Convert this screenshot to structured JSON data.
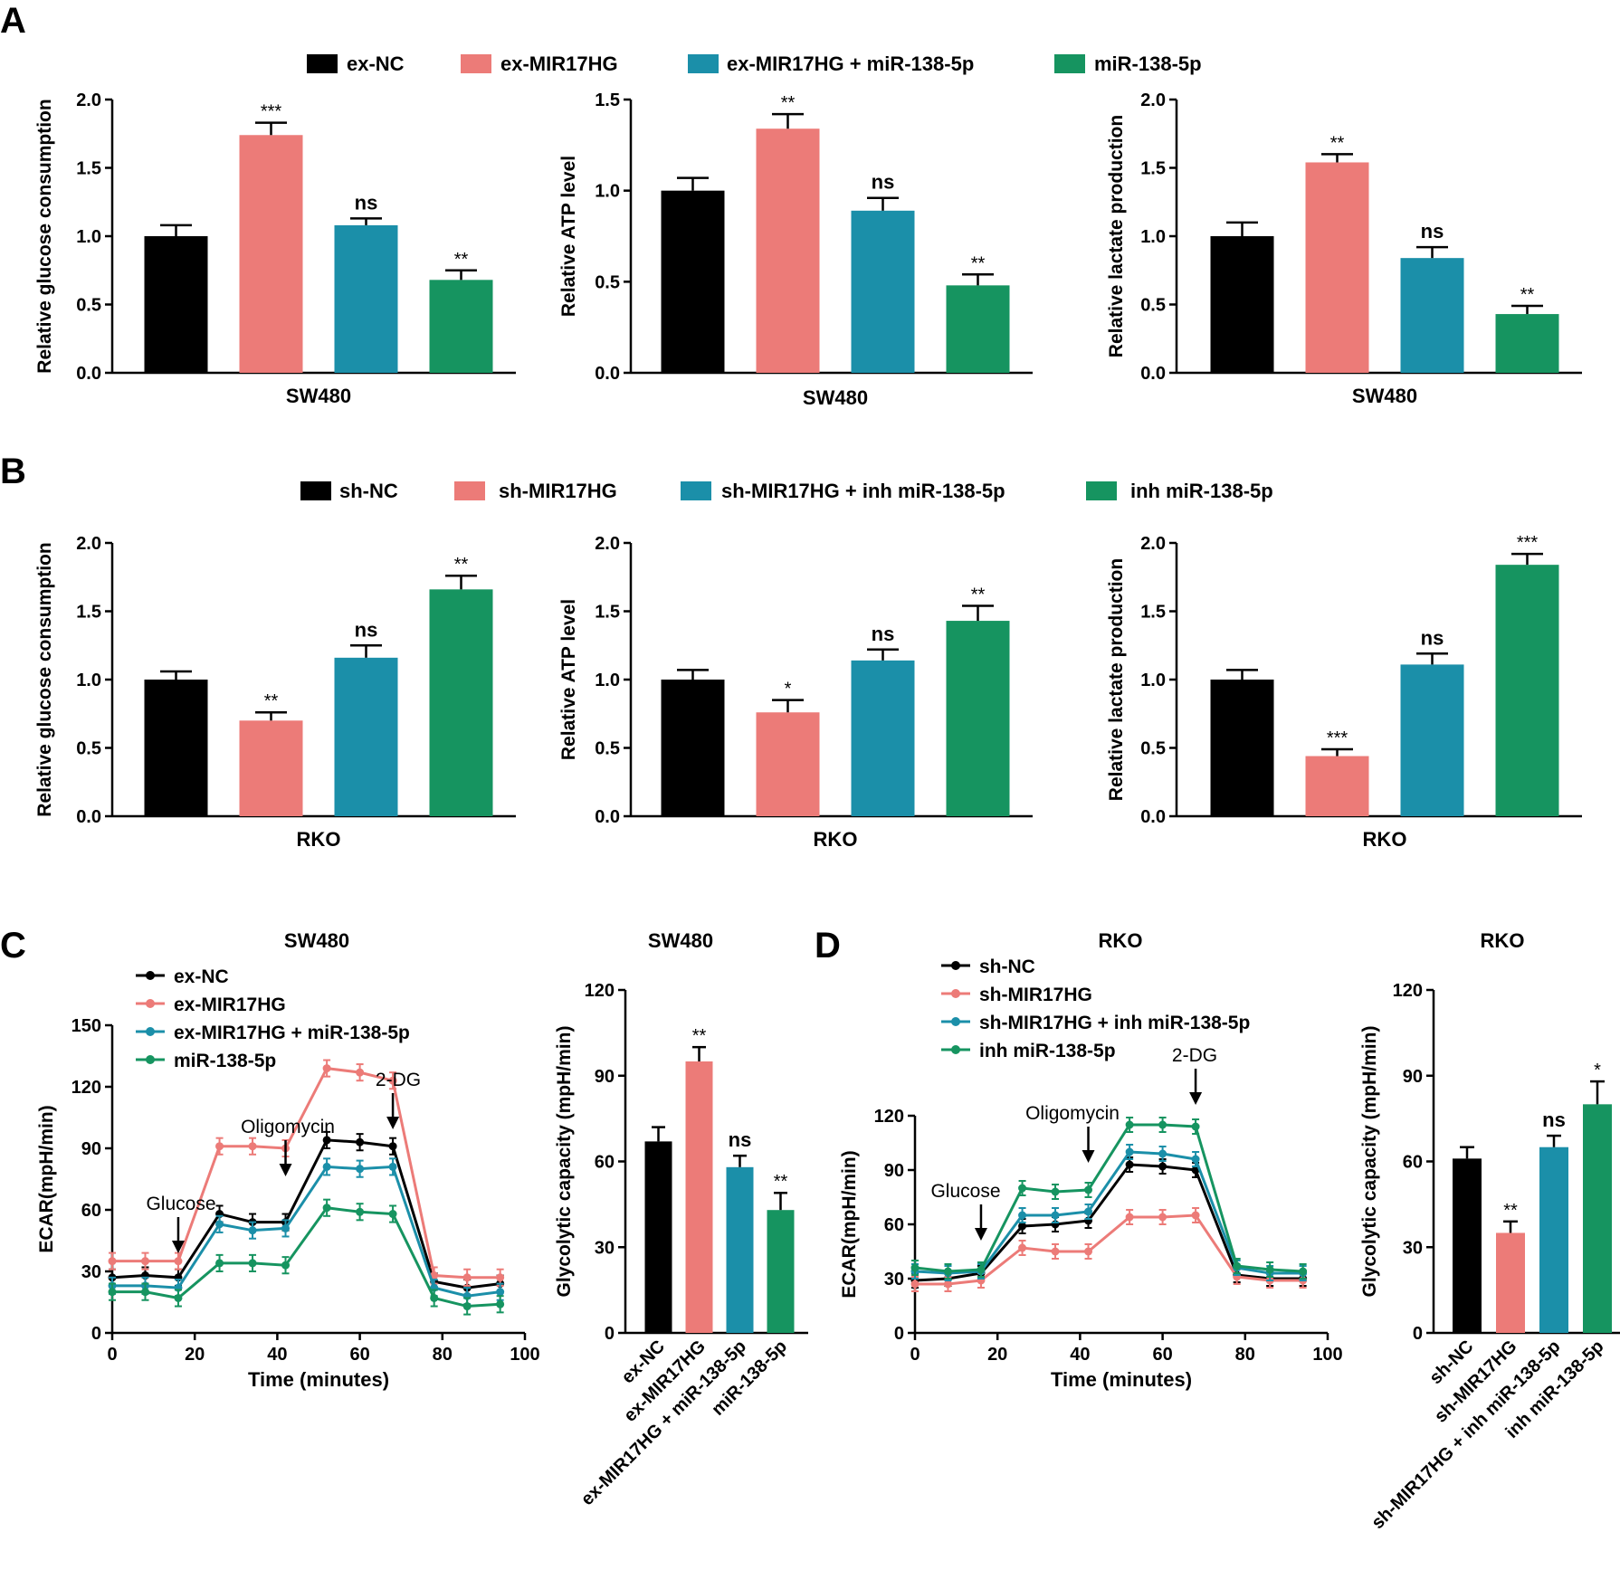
{
  "colors": {
    "black": "#000000",
    "salmon": "#ec7b78",
    "teal": "#1b8fa9",
    "green": "#169460"
  },
  "legends": {
    "A": [
      "ex-NC",
      "ex-MIR17HG",
      "ex-MIR17HG + miR-138-5p",
      "miR-138-5p"
    ],
    "B": [
      "sh-NC",
      "sh-MIR17HG",
      "sh-MIR17HG + inh miR-138-5p",
      "inh miR-138-5p"
    ]
  },
  "panel_letters": [
    "A",
    "B",
    "C",
    "D"
  ],
  "chart_data": [
    {
      "id": "A1",
      "type": "bar",
      "panel": "A",
      "ylabel": "Relative glucose consumption",
      "xlabel": "SW480",
      "ylim": [
        0,
        2.0
      ],
      "yticks": [
        0.0,
        0.5,
        1.0,
        1.5,
        2.0
      ],
      "ytick_labels": [
        "0.0",
        "0.5",
        "1.0",
        "1.5",
        "2.0"
      ],
      "categories": [
        "ex-NC",
        "ex-MIR17HG",
        "ex-MIR17HG + miR-138-5p",
        "miR-138-5p"
      ],
      "values": [
        1.0,
        1.74,
        1.08,
        0.68
      ],
      "errors": [
        0.08,
        0.09,
        0.05,
        0.07
      ],
      "significance": [
        "",
        "***",
        "ns",
        "**"
      ]
    },
    {
      "id": "A2",
      "type": "bar",
      "panel": "A",
      "ylabel": "Relative ATP level",
      "xlabel": "SW480",
      "ylim": [
        0,
        1.5
      ],
      "yticks": [
        0.0,
        0.5,
        1.0,
        1.5
      ],
      "ytick_labels": [
        "0.0",
        "0.5",
        "1.0",
        "1.5"
      ],
      "categories": [
        "ex-NC",
        "ex-MIR17HG",
        "ex-MIR17HG + miR-138-5p",
        "miR-138-5p"
      ],
      "values": [
        1.0,
        1.34,
        0.89,
        0.48
      ],
      "errors": [
        0.07,
        0.08,
        0.07,
        0.06
      ],
      "significance": [
        "",
        "**",
        "ns",
        "**"
      ]
    },
    {
      "id": "A3",
      "type": "bar",
      "panel": "A",
      "ylabel": "Relative lactate production",
      "xlabel": "SW480",
      "ylim": [
        0,
        2.0
      ],
      "yticks": [
        0.0,
        0.5,
        1.0,
        1.5,
        2.0
      ],
      "ytick_labels": [
        "0.0",
        "0.5",
        "1.0",
        "1.5",
        "2.0"
      ],
      "categories": [
        "ex-NC",
        "ex-MIR17HG",
        "ex-MIR17HG + miR-138-5p",
        "miR-138-5p"
      ],
      "values": [
        1.0,
        1.54,
        0.84,
        0.43
      ],
      "errors": [
        0.1,
        0.06,
        0.08,
        0.06
      ],
      "significance": [
        "",
        "**",
        "ns",
        "**"
      ]
    },
    {
      "id": "B1",
      "type": "bar",
      "panel": "B",
      "ylabel": "Relative glucose consumption",
      "xlabel": "RKO",
      "ylim": [
        0,
        2.0
      ],
      "yticks": [
        0.0,
        0.5,
        1.0,
        1.5,
        2.0
      ],
      "ytick_labels": [
        "0.0",
        "0.5",
        "1.0",
        "1.5",
        "2.0"
      ],
      "categories": [
        "sh-NC",
        "sh-MIR17HG",
        "sh-MIR17HG + inh miR-138-5p",
        "inh miR-138-5p"
      ],
      "values": [
        1.0,
        0.7,
        1.16,
        1.66
      ],
      "errors": [
        0.06,
        0.06,
        0.09,
        0.1
      ],
      "significance": [
        "",
        "**",
        "ns",
        "**"
      ]
    },
    {
      "id": "B2",
      "type": "bar",
      "panel": "B",
      "ylabel": "Relative ATP level",
      "xlabel": "RKO",
      "ylim": [
        0,
        2.0
      ],
      "yticks": [
        0.0,
        0.5,
        1.0,
        1.5,
        2.0
      ],
      "ytick_labels": [
        "0.0",
        "0.5",
        "1.0",
        "1.5",
        "2.0"
      ],
      "categories": [
        "sh-NC",
        "sh-MIR17HG",
        "sh-MIR17HG + inh miR-138-5p",
        "inh miR-138-5p"
      ],
      "values": [
        1.0,
        0.76,
        1.14,
        1.43
      ],
      "errors": [
        0.07,
        0.09,
        0.08,
        0.11
      ],
      "significance": [
        "",
        "*",
        "ns",
        "**"
      ]
    },
    {
      "id": "B3",
      "type": "bar",
      "panel": "B",
      "ylabel": "Relative lactate production",
      "xlabel": "RKO",
      "ylim": [
        0,
        2.0
      ],
      "yticks": [
        0.0,
        0.5,
        1.0,
        1.5,
        2.0
      ],
      "ytick_labels": [
        "0.0",
        "0.5",
        "1.0",
        "1.5",
        "2.0"
      ],
      "categories": [
        "sh-NC",
        "sh-MIR17HG",
        "sh-MIR17HG + inh miR-138-5p",
        "inh miR-138-5p"
      ],
      "values": [
        1.0,
        0.44,
        1.11,
        1.84
      ],
      "errors": [
        0.07,
        0.05,
        0.08,
        0.08
      ],
      "significance": [
        "",
        "***",
        "ns",
        "***"
      ]
    },
    {
      "id": "C1",
      "type": "line",
      "panel": "C",
      "title": "SW480",
      "ylabel": "ECAR(mpH/min)",
      "xlabel": "Time (minutes)",
      "xlim": [
        0,
        100
      ],
      "xticks": [
        0,
        20,
        40,
        60,
        80,
        100
      ],
      "ylim": [
        0,
        150
      ],
      "yticks": [
        0,
        30,
        60,
        90,
        120,
        150
      ],
      "x": [
        0,
        8,
        16,
        26,
        34,
        42,
        52,
        60,
        68,
        78,
        86,
        94
      ],
      "series": [
        {
          "name": "ex-NC",
          "color": "black",
          "values": [
            27,
            28,
            27,
            58,
            54,
            54,
            94,
            93,
            91,
            25,
            22,
            24
          ]
        },
        {
          "name": "ex-MIR17HG",
          "color": "salmon",
          "values": [
            35,
            35,
            35,
            91,
            91,
            90,
            129,
            127,
            123,
            28,
            27,
            27
          ]
        },
        {
          "name": "ex-MIR17HG + miR-138-5p",
          "color": "teal",
          "values": [
            23,
            23,
            22,
            53,
            50,
            51,
            81,
            80,
            81,
            22,
            18,
            20
          ]
        },
        {
          "name": "miR-138-5p",
          "color": "green",
          "values": [
            20,
            20,
            17,
            34,
            34,
            33,
            61,
            59,
            58,
            17,
            13,
            14
          ]
        }
      ],
      "errors": 4,
      "annotations": [
        {
          "label": "Glucose",
          "x": 16
        },
        {
          "label": "Oligomycin",
          "x": 42
        },
        {
          "label": "2-DG",
          "x": 68
        }
      ]
    },
    {
      "id": "C2",
      "type": "bar",
      "panel": "C",
      "title": "SW480",
      "ylabel": "Glycolytic capacity (mpH/min)",
      "ylim": [
        0,
        120
      ],
      "yticks": [
        0,
        30,
        60,
        90,
        120
      ],
      "ytick_labels": [
        "0",
        "30",
        "60",
        "90",
        "120"
      ],
      "categories": [
        "ex-NC",
        "ex-MIR17HG",
        "ex-MIR17HG + miR-138-5p",
        "miR-138-5p"
      ],
      "values": [
        67,
        95,
        58,
        43
      ],
      "errors": [
        5,
        5,
        4,
        6
      ],
      "significance": [
        "",
        "**",
        "ns",
        "**"
      ]
    },
    {
      "id": "D1",
      "type": "line",
      "panel": "D",
      "title": "RKO",
      "ylabel": "ECAR(mpH/min)",
      "xlabel": "Time (minutes)",
      "xlim": [
        0,
        100
      ],
      "xticks": [
        0,
        20,
        40,
        60,
        80,
        100
      ],
      "ylim": [
        0,
        120
      ],
      "yticks": [
        0,
        30,
        60,
        90,
        120
      ],
      "x": [
        0,
        8,
        16,
        26,
        34,
        42,
        52,
        60,
        68,
        78,
        86,
        94
      ],
      "series": [
        {
          "name": "sh-NC",
          "color": "black",
          "values": [
            29,
            30,
            33,
            59,
            60,
            62,
            93,
            92,
            90,
            32,
            30,
            30
          ]
        },
        {
          "name": "sh-MIR17HG",
          "color": "salmon",
          "values": [
            27,
            27,
            29,
            47,
            45,
            45,
            64,
            64,
            65,
            31,
            29,
            29
          ]
        },
        {
          "name": "sh-MIR17HG + inh miR-138-5p",
          "color": "teal",
          "values": [
            34,
            33,
            34,
            65,
            65,
            67,
            100,
            99,
            96,
            36,
            33,
            33
          ]
        },
        {
          "name": "inh miR-138-5p",
          "color": "green",
          "values": [
            36,
            34,
            35,
            80,
            78,
            79,
            115,
            115,
            114,
            37,
            35,
            34
          ]
        }
      ],
      "errors": 4,
      "annotations": [
        {
          "label": "Glucose",
          "x": 16
        },
        {
          "label": "Oligomycin",
          "x": 42
        },
        {
          "label": "2-DG",
          "x": 68
        }
      ]
    },
    {
      "id": "D2",
      "type": "bar",
      "panel": "D",
      "title": "RKO",
      "ylabel": "Glycolytic capacity (mpH/min)",
      "ylim": [
        0,
        120
      ],
      "yticks": [
        0,
        30,
        60,
        90,
        120
      ],
      "ytick_labels": [
        "0",
        "30",
        "60",
        "90",
        "120"
      ],
      "categories": [
        "sh-NC",
        "sh-MIR17HG",
        "sh-MIR17HG + inh miR-138-5p",
        "inh miR-138-5p"
      ],
      "values": [
        61,
        35,
        65,
        80
      ],
      "errors": [
        4,
        4,
        4,
        8
      ],
      "significance": [
        "",
        "**",
        "ns",
        "*"
      ]
    }
  ]
}
